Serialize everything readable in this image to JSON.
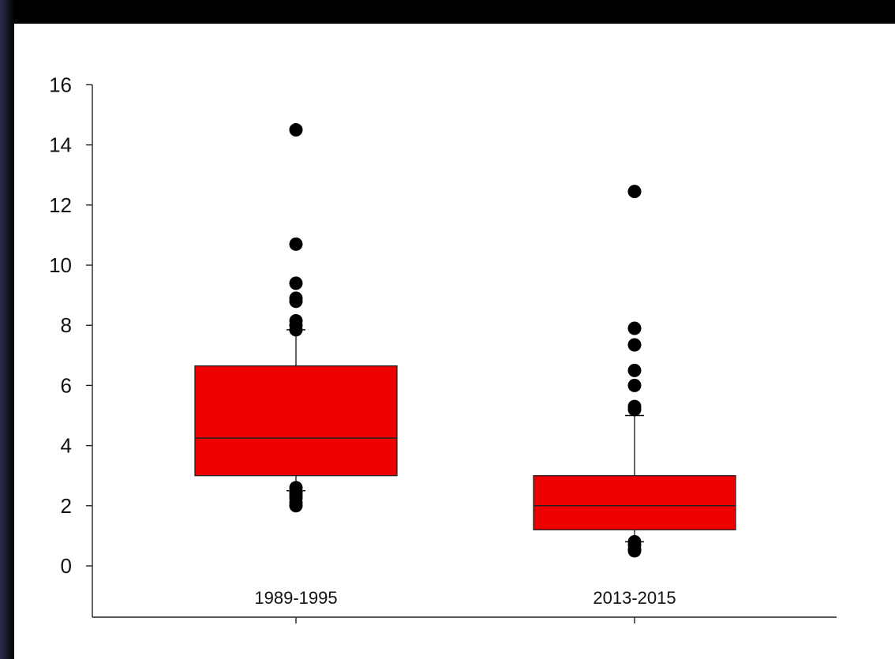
{
  "chart_data": {
    "type": "box",
    "categories": [
      "1989-1995",
      "2013-2015"
    ],
    "ylim": [
      -1.3,
      16
    ],
    "yticks": [
      0,
      2,
      4,
      6,
      8,
      10,
      12,
      14,
      16
    ],
    "ytick_labels": [
      "0",
      "2",
      "4",
      "6",
      "8",
      "10",
      "12",
      "14",
      "16"
    ],
    "grid": false,
    "box_color": "#ee0000",
    "boxes": [
      {
        "category": "1989-1995",
        "whisker_low": 2.5,
        "q1": 3.0,
        "median": 4.25,
        "q3": 6.65,
        "whisker_high": 7.85,
        "outliers": [
          14.5,
          10.7,
          9.4,
          8.9,
          8.8,
          8.15,
          8.0,
          7.85,
          2.6,
          2.45,
          2.35,
          2.25,
          2.1,
          2.0
        ]
      },
      {
        "category": "2013-2015",
        "whisker_low": 0.8,
        "q1": 1.2,
        "median": 2.0,
        "q3": 3.0,
        "whisker_high": 5.0,
        "outliers": [
          12.45,
          7.9,
          7.35,
          6.5,
          6.0,
          5.3,
          5.2,
          0.8,
          0.7,
          0.55,
          0.5
        ]
      }
    ]
  }
}
